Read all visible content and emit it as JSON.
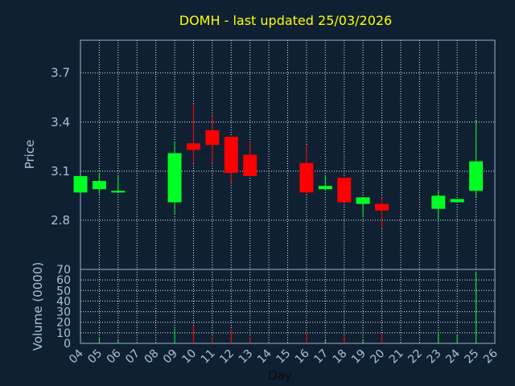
{
  "colors": {
    "background": "#0f2033",
    "frame": "#9ab3cc",
    "grid": "#e6edf5",
    "up": "#00ff22",
    "down": "#ff0000",
    "title": "#ffff00",
    "text": "#a9c2da",
    "xlabel": "#0b0b0b"
  },
  "chart_data": {
    "type": "candlestick",
    "title": "DOMH - last updated 25/03/2026",
    "xlabel": "Day",
    "ylabel": "Price",
    "volume_label": "Volume (0000)",
    "ylim": [
      2.5,
      3.9
    ],
    "yticks": [
      2.8,
      3.1,
      3.4,
      3.7
    ],
    "ytick_labels": [
      "2.8",
      "3.1",
      "3.4",
      "3.7"
    ],
    "volume_ylim": [
      0,
      70
    ],
    "volume_yticks": [
      0,
      10,
      20,
      30,
      40,
      50,
      60,
      70
    ],
    "volume_ytick_labels": [
      "0",
      "10",
      "20",
      "30",
      "40",
      "50",
      "60",
      "70"
    ],
    "x_ticks": [
      "04",
      "05",
      "06",
      "07",
      "08",
      "09",
      "10",
      "11",
      "12",
      "13",
      "14",
      "15",
      "16",
      "17",
      "18",
      "19",
      "20",
      "21",
      "22",
      "23",
      "24",
      "25",
      "26"
    ],
    "grid": true,
    "candles": [
      {
        "day": 4,
        "open": 2.97,
        "high": 3.07,
        "low": 2.97,
        "close": 3.07,
        "volume": 1
      },
      {
        "day": 5,
        "open": 2.99,
        "high": 3.09,
        "low": 2.96,
        "close": 3.04,
        "volume": 5
      },
      {
        "day": 6,
        "open": 2.97,
        "high": 3.07,
        "low": 2.97,
        "close": 2.98,
        "volume": 3
      },
      {
        "day": 9,
        "open": 2.91,
        "high": 3.28,
        "low": 2.84,
        "close": 3.21,
        "volume": 14
      },
      {
        "day": 10,
        "open": 3.27,
        "high": 3.51,
        "low": 3.15,
        "close": 3.23,
        "volume": 17
      },
      {
        "day": 11,
        "open": 3.35,
        "high": 3.44,
        "low": 3.15,
        "close": 3.26,
        "volume": 6
      },
      {
        "day": 12,
        "open": 3.31,
        "high": 3.31,
        "low": 3.03,
        "close": 3.09,
        "volume": 13
      },
      {
        "day": 13,
        "open": 3.2,
        "high": 3.28,
        "low": 3.07,
        "close": 3.07,
        "volume": 6
      },
      {
        "day": 16,
        "open": 3.15,
        "high": 3.26,
        "low": 2.96,
        "close": 2.97,
        "volume": 11
      },
      {
        "day": 17,
        "open": 2.99,
        "high": 3.07,
        "low": 2.98,
        "close": 3.01,
        "volume": 3
      },
      {
        "day": 18,
        "open": 3.06,
        "high": 3.06,
        "low": 2.91,
        "close": 2.91,
        "volume": 7
      },
      {
        "day": 19,
        "open": 2.9,
        "high": 2.94,
        "low": 2.82,
        "close": 2.94,
        "volume": 4
      },
      {
        "day": 20,
        "open": 2.9,
        "high": 2.94,
        "low": 2.75,
        "close": 2.86,
        "volume": 9
      },
      {
        "day": 23,
        "open": 2.87,
        "high": 2.98,
        "low": 2.8,
        "close": 2.95,
        "volume": 11
      },
      {
        "day": 24,
        "open": 2.91,
        "high": 2.93,
        "low": 2.91,
        "close": 2.93,
        "volume": 8
      },
      {
        "day": 25,
        "open": 2.98,
        "high": 3.41,
        "low": 2.94,
        "close": 3.16,
        "volume": 68
      }
    ]
  }
}
